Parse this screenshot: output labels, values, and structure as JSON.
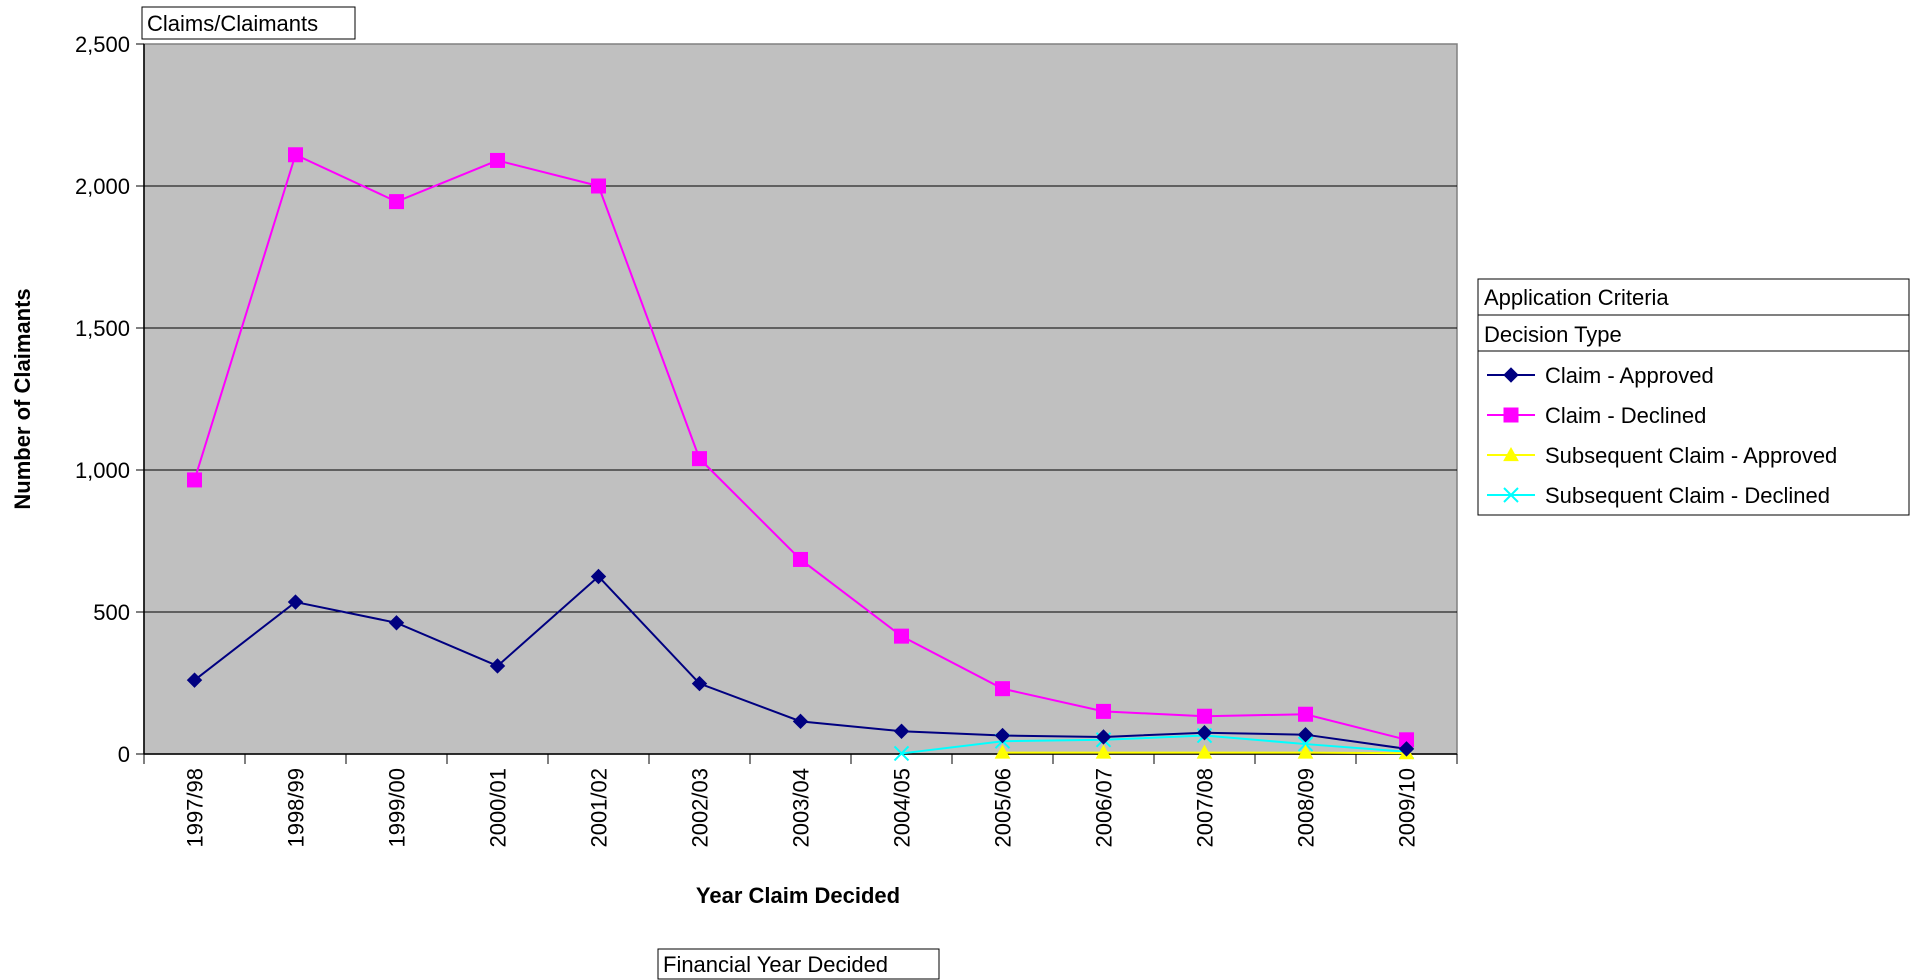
{
  "header_box": {
    "label": "Claims/Claimants"
  },
  "footer_box": {
    "label": "Financial Year Decided"
  },
  "legend": {
    "title": "Application Criteria",
    "subtitle": "Decision Type",
    "placement": "right"
  },
  "chart_data": {
    "type": "line",
    "xlabel": "Year Claim Decided",
    "ylabel": "Number of Claimants",
    "ylim": [
      0,
      2500
    ],
    "ytick_step": 500,
    "y_tick_labels": [
      "0",
      "500",
      "1,000",
      "1,500",
      "2,000",
      "2,500"
    ],
    "grid": true,
    "plot_background": "#c0c0c0",
    "categories": [
      "1997/98",
      "1998/99",
      "1999/00",
      "2000/01",
      "2001/02",
      "2002/03",
      "2003/04",
      "2004/05",
      "2005/06",
      "2006/07",
      "2007/08",
      "2008/09",
      "2009/10"
    ],
    "series": [
      {
        "name": "Claim - Approved",
        "color": "#000080",
        "marker": "diamond",
        "values": [
          260,
          535,
          462,
          310,
          625,
          248,
          115,
          80,
          65,
          60,
          75,
          68,
          18
        ]
      },
      {
        "name": "Claim - Declined",
        "color": "#ff00ff",
        "marker": "square",
        "values": [
          965,
          2110,
          1945,
          2090,
          2000,
          1040,
          685,
          415,
          230,
          150,
          133,
          140,
          50
        ]
      },
      {
        "name": "Subsequent Claim - Approved",
        "color": "#ffff00",
        "marker": "triangle",
        "values": [
          null,
          null,
          null,
          null,
          null,
          null,
          null,
          null,
          5,
          5,
          5,
          5,
          3
        ]
      },
      {
        "name": "Subsequent Claim - Declined",
        "color": "#00ffff",
        "marker": "x",
        "values": [
          null,
          null,
          null,
          null,
          null,
          null,
          null,
          2,
          45,
          50,
          65,
          35,
          8
        ]
      }
    ]
  }
}
